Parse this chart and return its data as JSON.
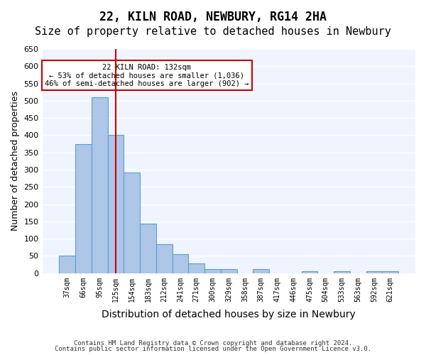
{
  "title1": "22, KILN ROAD, NEWBURY, RG14 2HA",
  "title2": "Size of property relative to detached houses in Newbury",
  "xlabel": "Distribution of detached houses by size in Newbury",
  "ylabel": "Number of detached properties",
  "categories": [
    "37sqm",
    "66sqm",
    "95sqm",
    "125sqm",
    "154sqm",
    "183sqm",
    "212sqm",
    "241sqm",
    "271sqm",
    "300sqm",
    "329sqm",
    "358sqm",
    "387sqm",
    "417sqm",
    "446sqm",
    "475sqm",
    "504sqm",
    "533sqm",
    "563sqm",
    "592sqm",
    "621sqm"
  ],
  "values": [
    50,
    375,
    510,
    400,
    292,
    143,
    83,
    55,
    29,
    11,
    11,
    0,
    11,
    0,
    0,
    5,
    0,
    5,
    0,
    5,
    5
  ],
  "bar_color": "#aec6e8",
  "bar_edge_color": "#5a9fd4",
  "vline_x": 3,
  "vline_color": "#cc0000",
  "annotation_text": "22 KILN ROAD: 132sqm\n← 53% of detached houses are smaller (1,036)\n46% of semi-detached houses are larger (902) →",
  "annotation_box_color": "white",
  "annotation_box_edge": "#cc0000",
  "ylim": [
    0,
    650
  ],
  "yticks": [
    0,
    50,
    100,
    150,
    200,
    250,
    300,
    350,
    400,
    450,
    500,
    550,
    600,
    650
  ],
  "footer1": "Contains HM Land Registry data © Crown copyright and database right 2024.",
  "footer2": "Contains public sector information licensed under the Open Government Licence v3.0.",
  "background_color": "#f0f4ff",
  "title1_fontsize": 12,
  "title2_fontsize": 11,
  "xlabel_fontsize": 10,
  "ylabel_fontsize": 9
}
